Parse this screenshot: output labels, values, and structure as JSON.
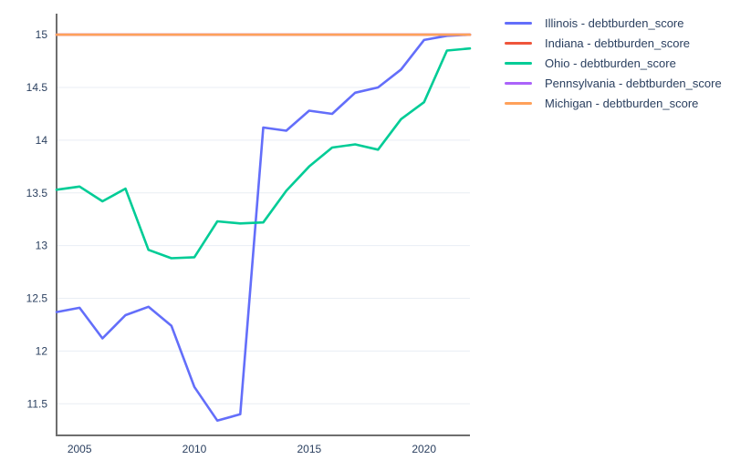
{
  "chart_data": {
    "type": "line",
    "title": "",
    "xlabel": "",
    "ylabel": "",
    "x": [
      2004,
      2005,
      2006,
      2007,
      2008,
      2009,
      2010,
      2011,
      2012,
      2013,
      2014,
      2015,
      2016,
      2017,
      2018,
      2019,
      2020,
      2021,
      2022
    ],
    "series": [
      {
        "name": "Illinois",
        "label": "Illinois - debtburden_score",
        "color": "#636EFA",
        "values": [
          12.37,
          12.41,
          12.12,
          12.34,
          12.42,
          12.24,
          11.66,
          11.34,
          11.4,
          14.12,
          14.09,
          14.28,
          14.25,
          14.45,
          14.5,
          14.67,
          14.95,
          14.99,
          15.0
        ]
      },
      {
        "name": "Indiana",
        "label": "Indiana - debtburden_score",
        "color": "#EF553B",
        "values": [
          15,
          15,
          15,
          15,
          15,
          15,
          15,
          15,
          15,
          15,
          15,
          15,
          15,
          15,
          15,
          15,
          15,
          15,
          15
        ]
      },
      {
        "name": "Ohio",
        "label": "Ohio - debtburden_score",
        "color": "#00CC96",
        "values": [
          13.53,
          13.56,
          13.42,
          13.54,
          12.96,
          12.88,
          12.89,
          13.23,
          13.21,
          13.22,
          13.52,
          13.75,
          13.93,
          13.96,
          13.91,
          14.2,
          14.36,
          14.85,
          14.87
        ]
      },
      {
        "name": "Pennsylvania",
        "label": "Pennsylvania - debtburden_score",
        "color": "#AB63FA",
        "values": [
          15,
          15,
          15,
          15,
          15,
          15,
          15,
          15,
          15,
          15,
          15,
          15,
          15,
          15,
          15,
          15,
          15,
          15,
          15
        ]
      },
      {
        "name": "Michigan",
        "label": "Michigan - debtburden_score",
        "color": "#FFA15A",
        "values": [
          15,
          15,
          15,
          15,
          15,
          15,
          15,
          15,
          15,
          15,
          15,
          15,
          15,
          15,
          15,
          15,
          15,
          15,
          15
        ]
      }
    ],
    "xlim": [
      2004,
      2022
    ],
    "ylim": [
      11.2,
      15.2
    ],
    "xticks": [
      2005,
      2010,
      2015,
      2020
    ],
    "yticks": [
      11.5,
      12,
      12.5,
      13,
      13.5,
      14,
      14.5,
      15
    ],
    "xtick_labels": [
      "2005",
      "2010",
      "2015",
      "2020"
    ],
    "ytick_labels": [
      "11.5",
      "12",
      "12.5",
      "13",
      "13.5",
      "14",
      "14.5",
      "15"
    ],
    "grid": "horizontal-only",
    "legend_position": "right"
  },
  "colors": {
    "text": "#2a3f5f",
    "gridline": "#e9eef4",
    "axis_line": "#6e6e6e",
    "background": "#ffffff"
  }
}
